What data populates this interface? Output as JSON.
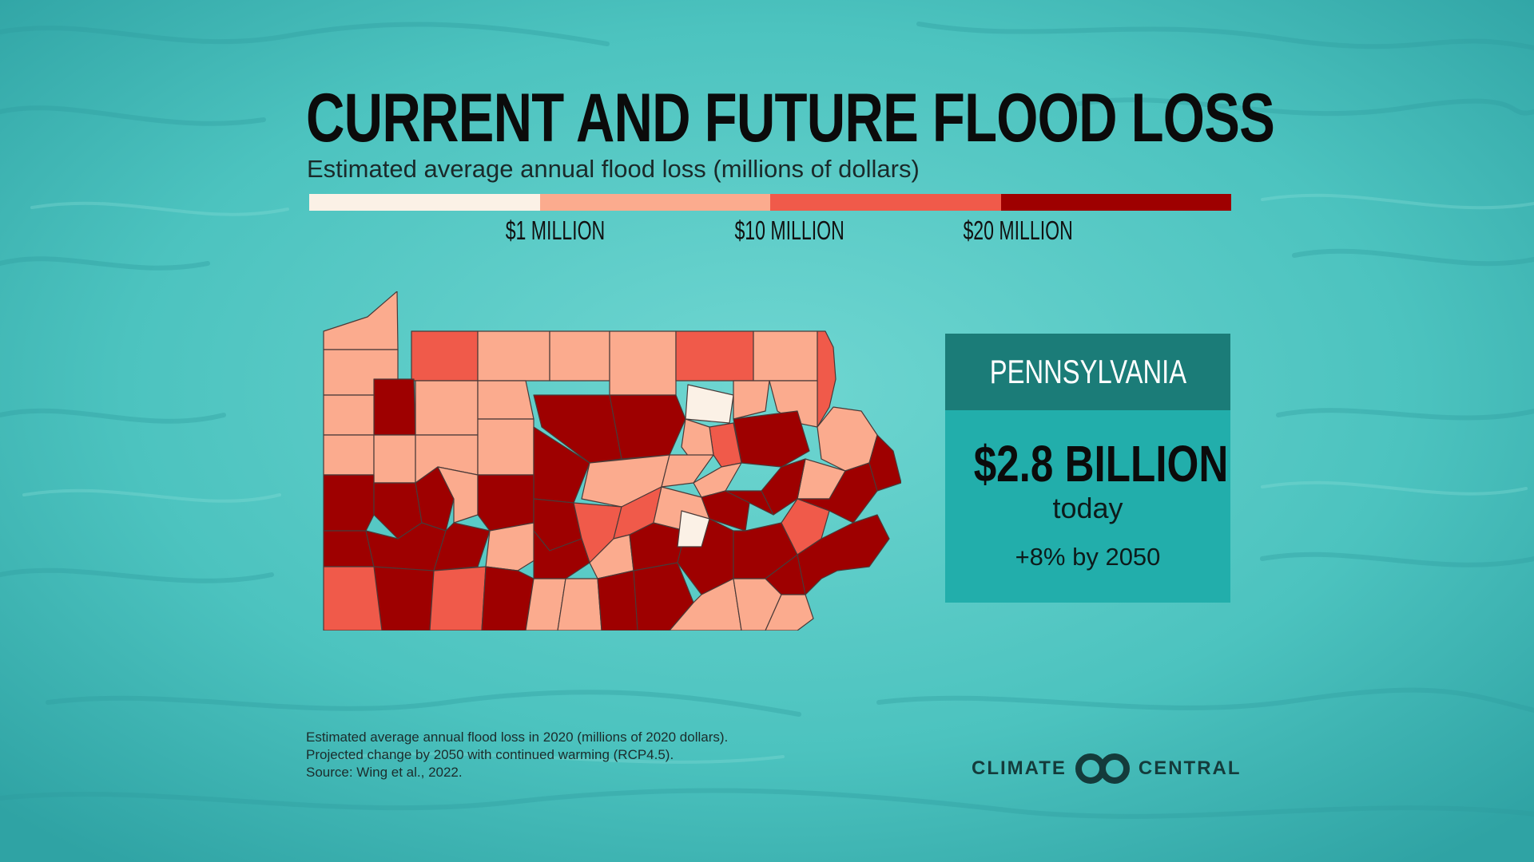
{
  "header": {
    "title": "CURRENT AND FUTURE FLOOD LOSS",
    "subtitle": "Estimated average annual flood loss (millions of dollars)"
  },
  "legend": {
    "colors": [
      "#fbf1e6",
      "#fbab8e",
      "#f05a4a",
      "#9e0000"
    ],
    "ticks": [
      "$1 MILLION",
      "$10 MILLION",
      "$20 MILLION"
    ]
  },
  "map": {
    "region": "Pennsylvania counties",
    "colors": {
      "class1": "#fbf1e6",
      "class2": "#fbab8e",
      "class3": "#f05a4a",
      "class4": "#9e0000",
      "border": "#4a3a38"
    }
  },
  "card": {
    "state": "PENNSYLVANIA",
    "value": "$2.8 BILLION",
    "label": "today",
    "change": "+8% by 2050",
    "colors": {
      "header": "#1b7c78",
      "body": "#22aeab"
    }
  },
  "footnote": {
    "line1": "Estimated average annual flood loss in 2020 (millions of 2020 dollars).",
    "line2": "Projected change by 2050 with continued warming (RCP4.5).",
    "line3": "Source: Wing et al., 2022."
  },
  "brand": {
    "left": "CLIMATE",
    "right": "CENTRAL",
    "icon": "climate-central-logo-icon"
  },
  "background": {
    "color": "#49c2bf",
    "texture": "water-surface"
  }
}
